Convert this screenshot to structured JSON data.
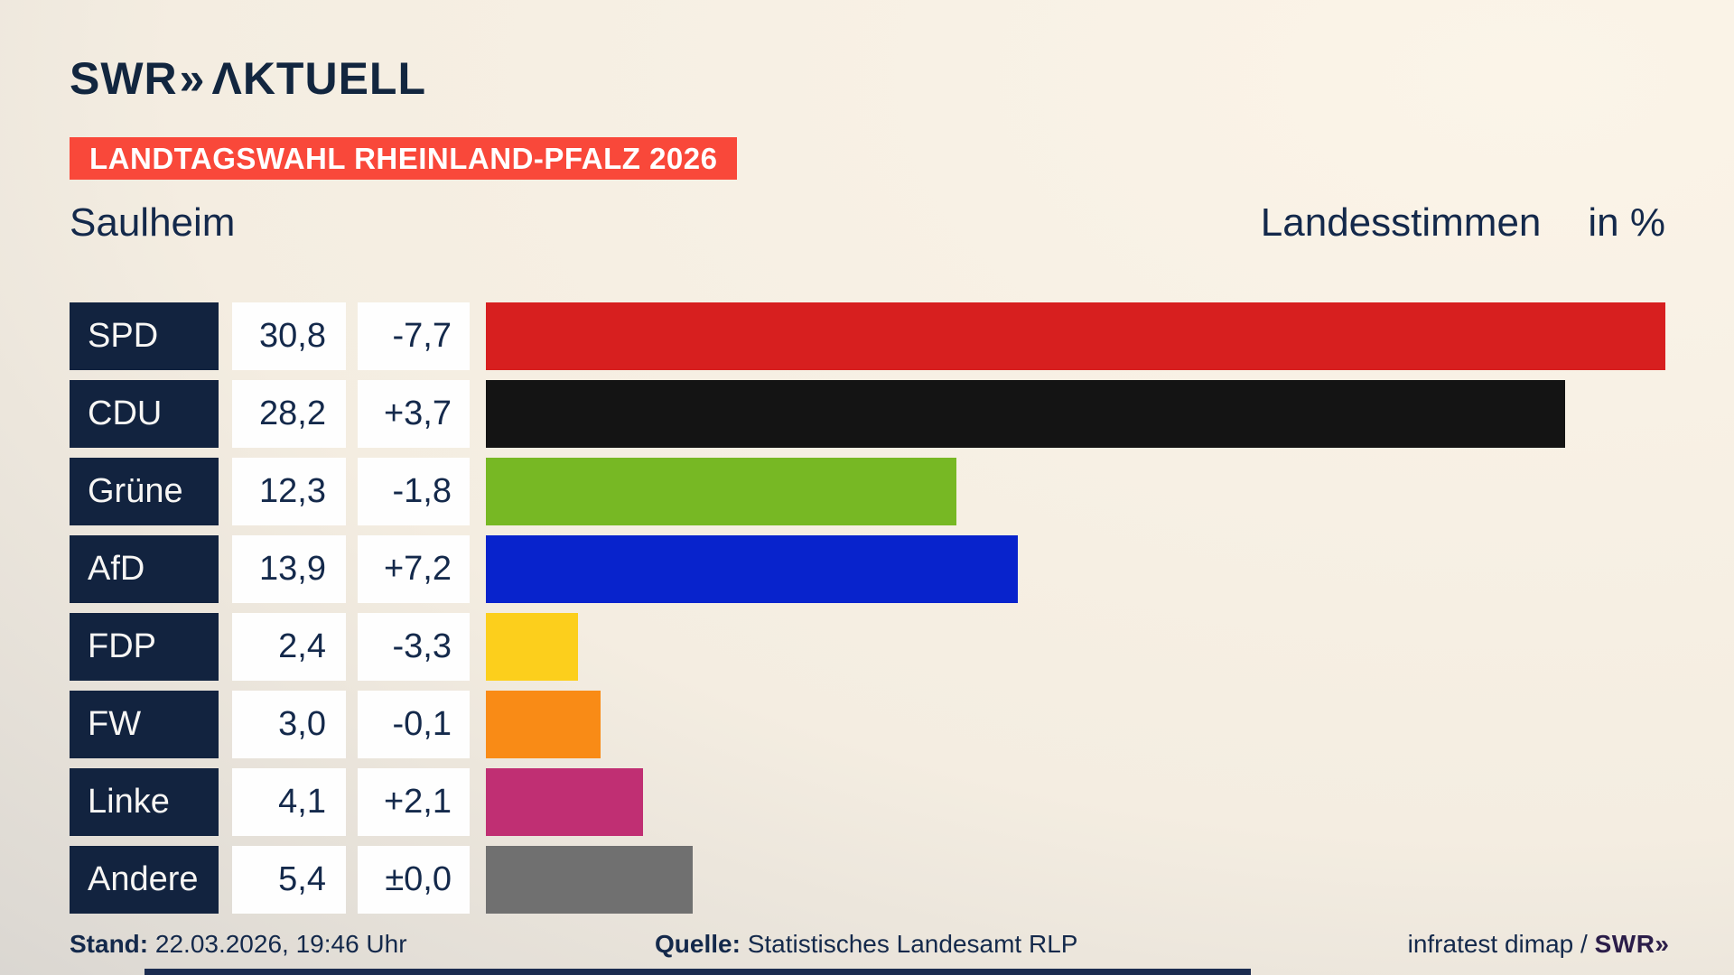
{
  "header": {
    "logo_main": "SWR",
    "logo_chevrons": "»",
    "logo_suffix": "ΛKTUELL"
  },
  "banner": {
    "label": "LANDTAGSWAHL RHEINLAND-PFALZ 2026",
    "bg_color": "#f9483a"
  },
  "titles": {
    "municipality": "Saulheim",
    "vote_type": "Landesstimmen",
    "unit": "in %"
  },
  "chart_data": {
    "type": "bar",
    "orientation": "horizontal",
    "title": "Landesstimmen in % — Saulheim",
    "unit": "percent",
    "xlim": [
      0,
      32.6
    ],
    "grid": false,
    "legend": "none",
    "categories": [
      "SPD",
      "CDU",
      "Grüne",
      "AfD",
      "FDP",
      "FW",
      "Linke",
      "Andere"
    ],
    "values": [
      30.8,
      28.2,
      12.3,
      13.9,
      2.4,
      3.0,
      4.1,
      5.4
    ],
    "parties": [
      {
        "name": "SPD",
        "value": 30.8,
        "value_label": "30,8",
        "diff_label": "-7,7",
        "color": "#d71f1f"
      },
      {
        "name": "CDU",
        "value": 28.2,
        "value_label": "28,2",
        "diff_label": "+3,7",
        "color": "#141414"
      },
      {
        "name": "Grüne",
        "value": 12.3,
        "value_label": "12,3",
        "diff_label": "-1,8",
        "color": "#77b824"
      },
      {
        "name": "AfD",
        "value": 13.9,
        "value_label": "13,9",
        "diff_label": "+7,2",
        "color": "#0823cc"
      },
      {
        "name": "FDP",
        "value": 2.4,
        "value_label": "2,4",
        "diff_label": "-3,3",
        "color": "#fccf1c"
      },
      {
        "name": "FW",
        "value": 3.0,
        "value_label": "3,0",
        "diff_label": "-0,1",
        "color": "#f98b16"
      },
      {
        "name": "Linke",
        "value": 4.1,
        "value_label": "4,1",
        "diff_label": "+2,1",
        "color": "#c02f73"
      },
      {
        "name": "Andere",
        "value": 5.4,
        "value_label": "5,4",
        "diff_label": "±0,0",
        "color": "#707070"
      }
    ]
  },
  "footer": {
    "stand_label": "Stand:",
    "stand_value": "22.03.2026, 19:46 Uhr",
    "quelle_label": "Quelle:",
    "quelle_value": "Statistisches Landesamt RLP",
    "credit_text": "infratest dimap / ",
    "credit_logo_main": "SWR",
    "credit_logo_chevrons": "»"
  }
}
